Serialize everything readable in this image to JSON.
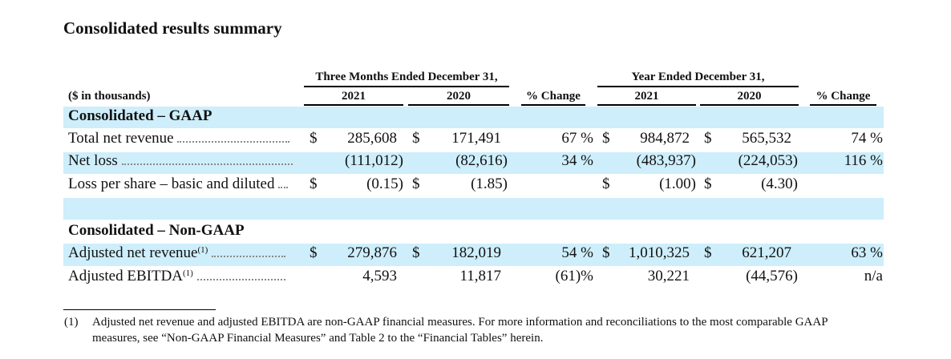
{
  "title": "Consolidated results summary",
  "table": {
    "units_label": "($ in thousands)",
    "group_headers": {
      "three_months": "Three Months Ended December 31,",
      "year": "Year Ended December 31,"
    },
    "col_headers": {
      "q2021": "2021",
      "q2020": "2020",
      "q_change": "% Change",
      "y2021": "2021",
      "y2020": "2020",
      "y_change": "% Change"
    },
    "sections": {
      "gaap": "Consolidated – GAAP",
      "non_gaap": "Consolidated – Non-GAAP"
    },
    "rows": {
      "total_net_revenue": {
        "label": "Total net revenue",
        "q2021_cur": "$",
        "q2021": "285,608",
        "q2020_cur": "$",
        "q2020": "171,491",
        "q_change": "67 %",
        "y2021_cur": "$",
        "y2021": "984,872",
        "y2020_cur": "$",
        "y2020": "565,532",
        "y_change": "74 %"
      },
      "net_loss": {
        "label": "Net loss",
        "q2021": "(111,012)",
        "q2020": "(82,616)",
        "q_change": "34 %",
        "y2021": "(483,937)",
        "y2020": "(224,053)",
        "y_change": "116 %"
      },
      "loss_per_share": {
        "label": "Loss per share – basic and diluted",
        "q2021_cur": "$",
        "q2021": "(0.15)",
        "q2020_cur": "$",
        "q2020": "(1.85)",
        "y2021_cur": "$",
        "y2021": "(1.00)",
        "y2020_cur": "$",
        "y2020": "(4.30)"
      },
      "adjusted_net_revenue": {
        "label": "Adjusted net revenue",
        "sup": "(1)",
        "q2021_cur": "$",
        "q2021": "279,876",
        "q2020_cur": "$",
        "q2020": "182,019",
        "q_change": "54 %",
        "y2021_cur": "$",
        "y2021": "1,010,325",
        "y2020_cur": "$",
        "y2020": "621,207",
        "y_change": "63 %"
      },
      "adjusted_ebitda": {
        "label": "Adjusted EBITDA",
        "sup": "(1)",
        "q2021": "4,593",
        "q2020": "11,817",
        "q_change": "(61)%",
        "y2021": "30,221",
        "y2020": "(44,576)",
        "y_change": "n/a"
      }
    }
  },
  "footnote": {
    "marker": "(1)",
    "line1": "Adjusted net revenue and adjusted EBITDA are non-GAAP financial measures. For more information and reconciliations to the most comparable GAAP",
    "line2": "measures, see “Non-GAAP Financial Measures” and Table 2 to the “Financial Tables” herein."
  }
}
